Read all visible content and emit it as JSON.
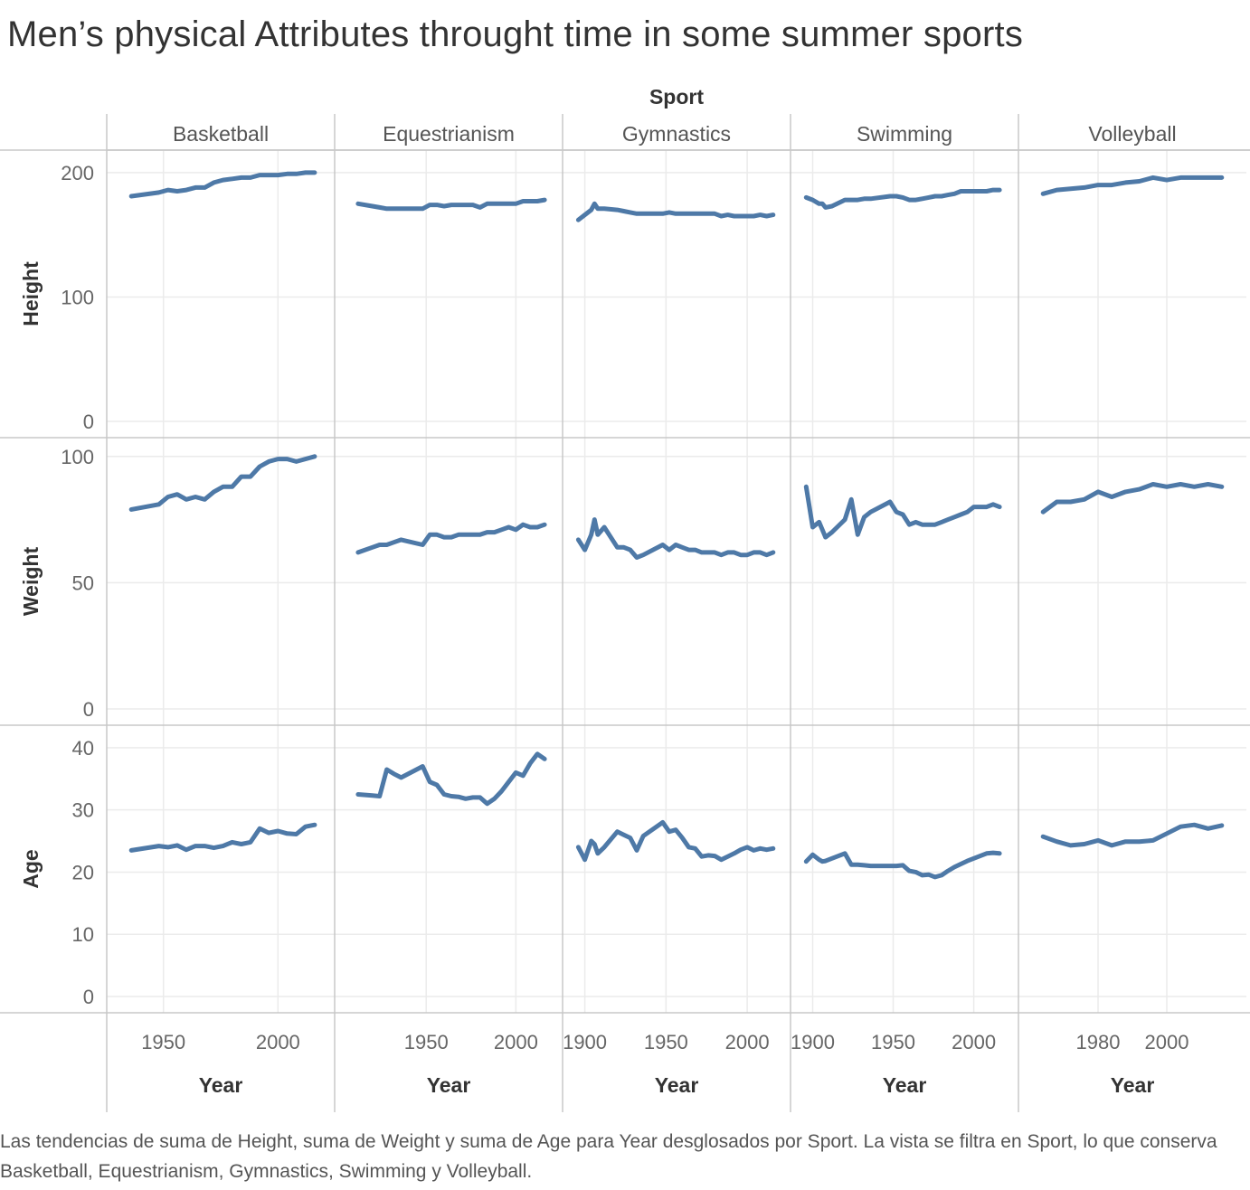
{
  "title": "Men’s physical Attributes throught time in some summer sports",
  "caption": "Las tendencias de suma de Height, suma de Weight y suma de Age para Year desglosados por Sport. La vista se filtra en Sport, lo que conserva Basketball, Equestrianism, Gymnastics, Swimming y Volleyball.",
  "colors": {
    "line": "#4e79a7",
    "grid": "#ebebeb",
    "border": "#c8c8c8",
    "text": "#333333"
  },
  "chart_data": {
    "type": "line",
    "column_header": "Sport",
    "x_label": "Year",
    "sports": [
      {
        "name": "Basketball",
        "xlim": [
          1930,
          2020
        ],
        "xticks": [
          1950,
          2000
        ]
      },
      {
        "name": "Equestrianism",
        "xlim": [
          1905,
          2020
        ],
        "xticks": [
          1950,
          2000
        ]
      },
      {
        "name": "Gymnastics",
        "xlim": [
          1893,
          2020
        ],
        "xticks": [
          1900,
          1950,
          2000
        ]
      },
      {
        "name": "Swimming",
        "xlim": [
          1893,
          2021
        ],
        "xticks": [
          1900,
          1950,
          2000
        ]
      },
      {
        "name": "Volleyball",
        "xlim": [
          1960,
          2020
        ],
        "xticks": [
          1980,
          2000
        ]
      }
    ],
    "measures": [
      {
        "name": "Height",
        "ylim": [
          0,
          205
        ],
        "yticks": [
          0,
          100,
          200
        ]
      },
      {
        "name": "Weight",
        "ylim": [
          0,
          101
        ],
        "yticks": [
          0,
          50,
          100
        ]
      },
      {
        "name": "Age",
        "ylim": [
          0,
          41
        ],
        "yticks": [
          0,
          10,
          20,
          30,
          40
        ]
      }
    ],
    "series": {
      "Basketball": {
        "x": [
          1936,
          1948,
          1952,
          1956,
          1960,
          1964,
          1968,
          1972,
          1976,
          1980,
          1984,
          1988,
          1992,
          1996,
          2000,
          2004,
          2008,
          2012,
          2016
        ],
        "Height": [
          181,
          184,
          186,
          185,
          186,
          188,
          188,
          192,
          194,
          195,
          196,
          196,
          198,
          198,
          198,
          199,
          199,
          200,
          200
        ],
        "Weight": [
          79,
          81,
          84,
          85,
          83,
          84,
          83,
          86,
          88,
          88,
          92,
          92,
          96,
          98,
          99,
          99,
          98,
          99,
          100
        ],
        "Age": [
          23.5,
          24.2,
          24.0,
          24.3,
          23.6,
          24.2,
          24.2,
          23.9,
          24.2,
          24.8,
          24.5,
          24.8,
          27.0,
          26.3,
          26.6,
          26.2,
          26.1,
          27.3,
          27.6
        ]
      },
      "Equestrianism": {
        "x": [
          1912,
          1920,
          1924,
          1928,
          1932,
          1936,
          1948,
          1952,
          1956,
          1960,
          1964,
          1968,
          1972,
          1976,
          1980,
          1984,
          1988,
          1992,
          1996,
          2000,
          2004,
          2008,
          2012,
          2016
        ],
        "Height": [
          175,
          173,
          172,
          171,
          171,
          171,
          171,
          174,
          174,
          173,
          174,
          174,
          174,
          174,
          172,
          175,
          175,
          175,
          175,
          175,
          177,
          177,
          177,
          178
        ],
        "Weight": [
          62,
          64,
          65,
          65,
          66,
          67,
          65,
          69,
          69,
          68,
          68,
          69,
          69,
          69,
          69,
          70,
          70,
          71,
          72,
          71,
          73,
          72,
          72,
          73
        ],
        "Age": [
          32.5,
          32.3,
          32.2,
          36.5,
          35.8,
          35.2,
          37.0,
          34.5,
          34.0,
          32.5,
          32.2,
          32.1,
          31.8,
          32.0,
          32.0,
          31.0,
          31.8,
          33.0,
          34.5,
          36.0,
          35.5,
          37.5,
          39.0,
          38.2
        ]
      },
      "Gymnastics": {
        "x": [
          1896,
          1900,
          1904,
          1906,
          1908,
          1912,
          1920,
          1924,
          1928,
          1932,
          1936,
          1948,
          1952,
          1956,
          1960,
          1964,
          1968,
          1972,
          1976,
          1980,
          1984,
          1988,
          1992,
          1996,
          2000,
          2004,
          2008,
          2012,
          2016
        ],
        "Height": [
          162,
          166,
          170,
          175,
          171,
          171,
          170,
          169,
          168,
          167,
          167,
          167,
          168,
          167,
          167,
          167,
          167,
          167,
          167,
          167,
          165,
          166,
          165,
          165,
          165,
          165,
          166,
          165,
          166
        ],
        "Weight": [
          67,
          63,
          69,
          75,
          69,
          72,
          64,
          64,
          63,
          60,
          61,
          65,
          63,
          65,
          64,
          63,
          63,
          62,
          62,
          62,
          61,
          62,
          62,
          61,
          61,
          62,
          62,
          61,
          62
        ],
        "Age": [
          24.0,
          22.0,
          25.0,
          24.5,
          23.0,
          24.0,
          26.5,
          26.0,
          25.5,
          23.5,
          25.8,
          28.0,
          26.5,
          26.8,
          25.5,
          24.0,
          23.8,
          22.5,
          22.7,
          22.6,
          22.0,
          22.5,
          23.0,
          23.6,
          24.0,
          23.5,
          23.8,
          23.6,
          23.8
        ]
      },
      "Swimming": {
        "x": [
          1896,
          1900,
          1904,
          1906,
          1908,
          1912,
          1920,
          1924,
          1928,
          1932,
          1936,
          1948,
          1952,
          1956,
          1960,
          1964,
          1968,
          1972,
          1976,
          1980,
          1984,
          1988,
          1992,
          1996,
          2000,
          2004,
          2008,
          2012,
          2016
        ],
        "Height": [
          180,
          178,
          175,
          175,
          172,
          173,
          178,
          178,
          178,
          179,
          179,
          181,
          181,
          180,
          178,
          178,
          179,
          180,
          181,
          181,
          182,
          183,
          185,
          185,
          185,
          185,
          185,
          186,
          186
        ],
        "Weight": [
          88,
          72,
          74,
          71,
          68,
          70,
          75,
          83,
          69,
          76,
          78,
          82,
          78,
          77,
          73,
          74,
          73,
          73,
          73,
          74,
          75,
          76,
          77,
          78,
          80,
          80,
          80,
          81,
          80
        ],
        "Age": [
          21.7,
          22.8,
          22.0,
          21.7,
          21.8,
          22.2,
          23.0,
          21.2,
          21.2,
          21.1,
          21.0,
          21.0,
          21.0,
          21.1,
          20.2,
          20.0,
          19.5,
          19.6,
          19.2,
          19.5,
          20.2,
          20.8,
          21.3,
          21.8,
          22.2,
          22.6,
          23.0,
          23.1,
          23.0
        ]
      },
      "Volleyball": {
        "x": [
          1964,
          1968,
          1972,
          1976,
          1980,
          1984,
          1988,
          1992,
          1996,
          2000,
          2004,
          2008,
          2012,
          2016
        ],
        "Height": [
          183,
          186,
          187,
          188,
          190,
          190,
          192,
          193,
          196,
          194,
          196,
          196,
          196,
          196
        ],
        "Weight": [
          78,
          82,
          82,
          83,
          86,
          84,
          86,
          87,
          89,
          88,
          89,
          88,
          89,
          88
        ],
        "Age": [
          25.7,
          24.9,
          24.3,
          24.5,
          25.1,
          24.3,
          24.9,
          24.9,
          25.1,
          26.2,
          27.3,
          27.6,
          27.0,
          27.5
        ]
      }
    }
  }
}
